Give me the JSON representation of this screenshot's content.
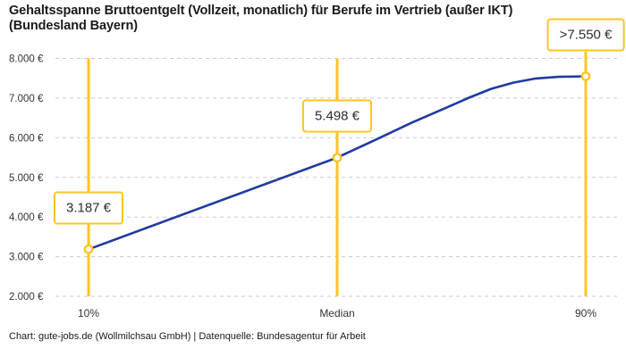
{
  "header": {
    "title_line1": "Gehaltsspanne Bruttoentgelt (Vollzeit, monatlich) für Berufe im Vertrieb (außer IKT)",
    "title_line2": "(Bundesland Bayern)"
  },
  "footer": {
    "credit": "Chart: gute-jobs.de (Wollmilchsau GmbH) | Datenquelle: Bundesagentur für Arbeit"
  },
  "chart_data": {
    "type": "line",
    "title": "Gehaltsspanne Bruttoentgelt (Vollzeit, monatlich) für Berufe im Vertrieb (außer IKT) (Bundesland Bayern)",
    "categories": [
      "10%",
      "Median",
      "90%"
    ],
    "values": [
      3187,
      5498,
      7550
    ],
    "point_labels": [
      "3.187 €",
      "5.498 €",
      ">7.550 €"
    ],
    "value_capped_at_90th": true,
    "xlabel": "",
    "ylabel": "",
    "ylim": [
      2000,
      8000
    ],
    "yticks": [
      {
        "value": 2000,
        "label": "2.000 €"
      },
      {
        "value": 3000,
        "label": "3.000 €"
      },
      {
        "value": 4000,
        "label": "4.000 €"
      },
      {
        "value": 5000,
        "label": "5.000 €"
      },
      {
        "value": 6000,
        "label": "6.000 €"
      },
      {
        "value": 7000,
        "label": "7.000 €"
      },
      {
        "value": 8000,
        "label": "8.000 €"
      }
    ],
    "grid": "horizontal-dashed",
    "legend": "none",
    "colors": {
      "line": "#203AA0",
      "accent": "#FDC524",
      "grid": "#CBCBCB",
      "text": "#333333"
    }
  }
}
